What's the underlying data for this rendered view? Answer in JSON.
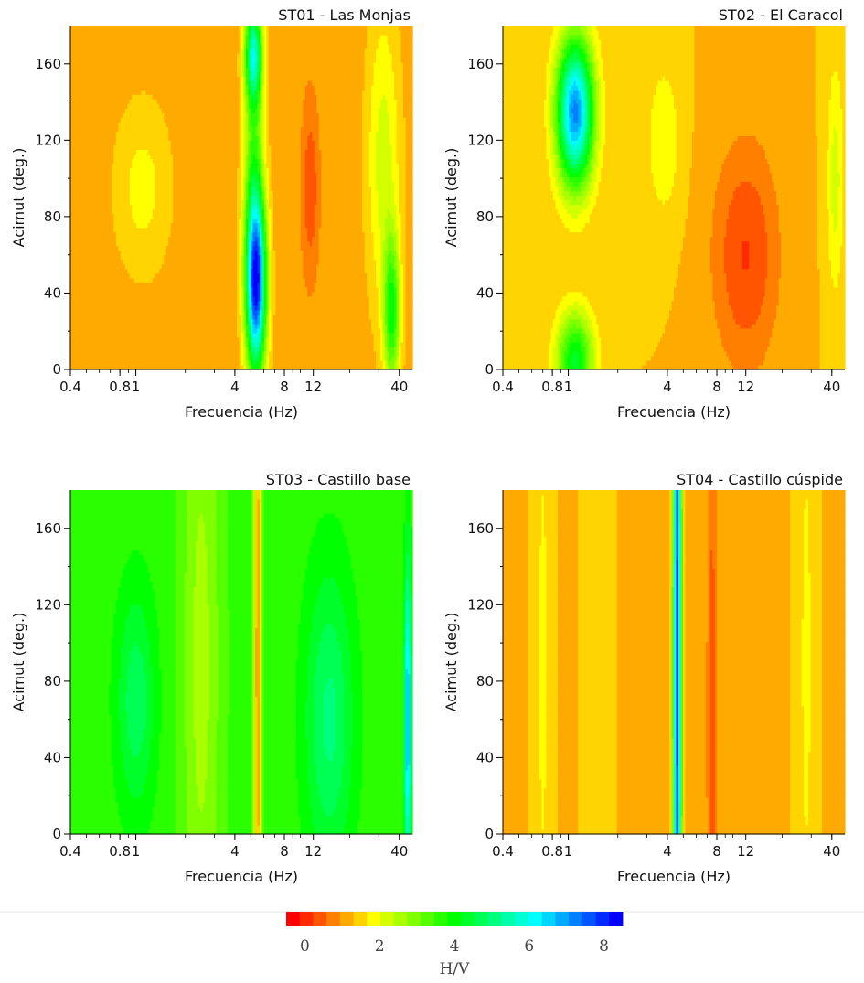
{
  "chart_data": [
    {
      "type": "heatmap",
      "title": "ST01 - Las Monjas",
      "xlabel": "Frecuencia (Hz)",
      "ylabel": "Acimut (deg.)",
      "x_scale": "log",
      "xlim": [
        0.4,
        48
      ],
      "ylim": [
        0,
        180
      ],
      "x_ticks": [
        "0.4",
        "0.8",
        "1",
        "4",
        "8",
        "12",
        "40"
      ],
      "y_ticks": [
        "0",
        "40",
        "80",
        "120",
        "160"
      ],
      "background_hv": 1.1,
      "features": [
        {
          "f": 1.1,
          "az": 95,
          "hv": 1.8,
          "fwidth": 0.17,
          "azwidth": 45
        },
        {
          "f": 5.4,
          "az": 45,
          "hv": 7.3,
          "fwidth": 0.06,
          "azwidth": 45
        },
        {
          "f": 5.2,
          "az": 165,
          "hv": 4.8,
          "fwidth": 0.05,
          "azwidth": 25
        },
        {
          "f": 5.2,
          "az": 100,
          "hv": 3.2,
          "fwidth": 0.06,
          "azwidth": 90
        },
        {
          "f": 11.5,
          "az": 95,
          "hv": 0.3,
          "fwidth": 0.05,
          "azwidth": 45
        },
        {
          "f": 36,
          "az": 30,
          "hv": 3.8,
          "fwidth": 0.05,
          "azwidth": 40
        },
        {
          "f": 32,
          "az": 110,
          "hv": 2.2,
          "fwidth": 0.1,
          "azwidth": 80
        }
      ]
    },
    {
      "type": "heatmap",
      "title": "ST02 - El Caracol",
      "xlabel": "Frecuencia (Hz)",
      "ylabel": "Acimut (deg.)",
      "x_scale": "log",
      "xlim": [
        0.4,
        48
      ],
      "ylim": [
        0,
        180
      ],
      "x_ticks": [
        "0.4",
        "0.8",
        "1",
        "4",
        "8",
        "12",
        "40"
      ],
      "y_ticks": [
        "0",
        "40",
        "80",
        "120",
        "160"
      ],
      "background_hv": 1.3,
      "features": [
        {
          "f": 1.1,
          "az": 135,
          "hv": 7.2,
          "fwidth": 0.11,
          "azwidth": 38
        },
        {
          "f": 1.1,
          "az": 5,
          "hv": 4.3,
          "fwidth": 0.11,
          "azwidth": 25
        },
        {
          "f": 3.8,
          "az": 120,
          "hv": 2.0,
          "fwidth": 0.1,
          "azwidth": 40
        },
        {
          "f": 12,
          "az": 60,
          "hv": 0.2,
          "fwidth": 0.2,
          "azwidth": 60
        },
        {
          "f": 42,
          "az": 100,
          "hv": 2.2,
          "fwidth": 0.05,
          "azwidth": 60
        }
      ]
    },
    {
      "type": "heatmap",
      "title": "ST03 - Castillo base",
      "xlabel": "Frecuencia (Hz)",
      "ylabel": "Acimut (deg.)",
      "x_scale": "log",
      "xlim": [
        0.4,
        48
      ],
      "ylim": [
        0,
        180
      ],
      "x_ticks": [
        "0.4",
        "0.8",
        "1",
        "4",
        "8",
        "12",
        "40"
      ],
      "y_ticks": [
        "0",
        "40",
        "80",
        "120",
        "160"
      ],
      "background_hv": 3.6,
      "features": [
        {
          "f": 1.0,
          "az": 70,
          "hv": 4.8,
          "fwidth": 0.12,
          "azwidth": 60
        },
        {
          "f": 2.5,
          "az": 90,
          "hv": 2.6,
          "fwidth": 0.12,
          "azwidth": 200
        },
        {
          "f": 5.5,
          "az": 90,
          "hv": 1.0,
          "fwidth": 0.025,
          "azwidth": 300
        },
        {
          "f": 15,
          "az": 60,
          "hv": 5.0,
          "fwidth": 0.15,
          "azwidth": 80
        },
        {
          "f": 45,
          "az": 60,
          "hv": 7.0,
          "fwidth": 0.02,
          "azwidth": 80
        }
      ]
    },
    {
      "type": "heatmap",
      "title": "ST04 - Castillo cúspide",
      "xlabel": "Frecuencia (Hz)",
      "ylabel": "Acimut (deg.)",
      "x_scale": "log",
      "xlim": [
        0.4,
        48
      ],
      "ylim": [
        0,
        180
      ],
      "x_ticks": [
        "0.4",
        "0.8",
        "1",
        "4",
        "8",
        "12",
        "40"
      ],
      "y_ticks": [
        "0",
        "40",
        "80",
        "120",
        "160"
      ],
      "background_hv": 1.2,
      "features": [
        {
          "f": 4.6,
          "az": 90,
          "hv": 8.0,
          "fwidth": 0.025,
          "azwidth": 300
        },
        {
          "f": 0.7,
          "az": 90,
          "hv": 1.7,
          "fwidth": 0.07,
          "azwidth": 300
        },
        {
          "f": 1.5,
          "az": 90,
          "hv": 1.6,
          "fwidth": 0.1,
          "azwidth": 300
        },
        {
          "f": 7.5,
          "az": 60,
          "hv": 0.3,
          "fwidth": 0.03,
          "azwidth": 150
        },
        {
          "f": 28,
          "az": 90,
          "hv": 1.7,
          "fwidth": 0.08,
          "azwidth": 300
        }
      ]
    }
  ],
  "colorbar": {
    "label": "H/V",
    "range": [
      -0.5,
      8.5
    ],
    "ticks": [
      "0",
      "2",
      "4",
      "6",
      "8"
    ],
    "colors": [
      "#ff0000",
      "#ff2a00",
      "#ff5500",
      "#ff7f00",
      "#ffaa00",
      "#ffd400",
      "#ffff00",
      "#d4ff00",
      "#aaff00",
      "#7fff00",
      "#55ff00",
      "#2aff00",
      "#00ff00",
      "#00ff2a",
      "#00ff55",
      "#00ff7f",
      "#00ffaa",
      "#00ffd4",
      "#00ffff",
      "#00d4ff",
      "#00aaff",
      "#007fff",
      "#0055ff",
      "#002aff",
      "#0000ff"
    ]
  }
}
